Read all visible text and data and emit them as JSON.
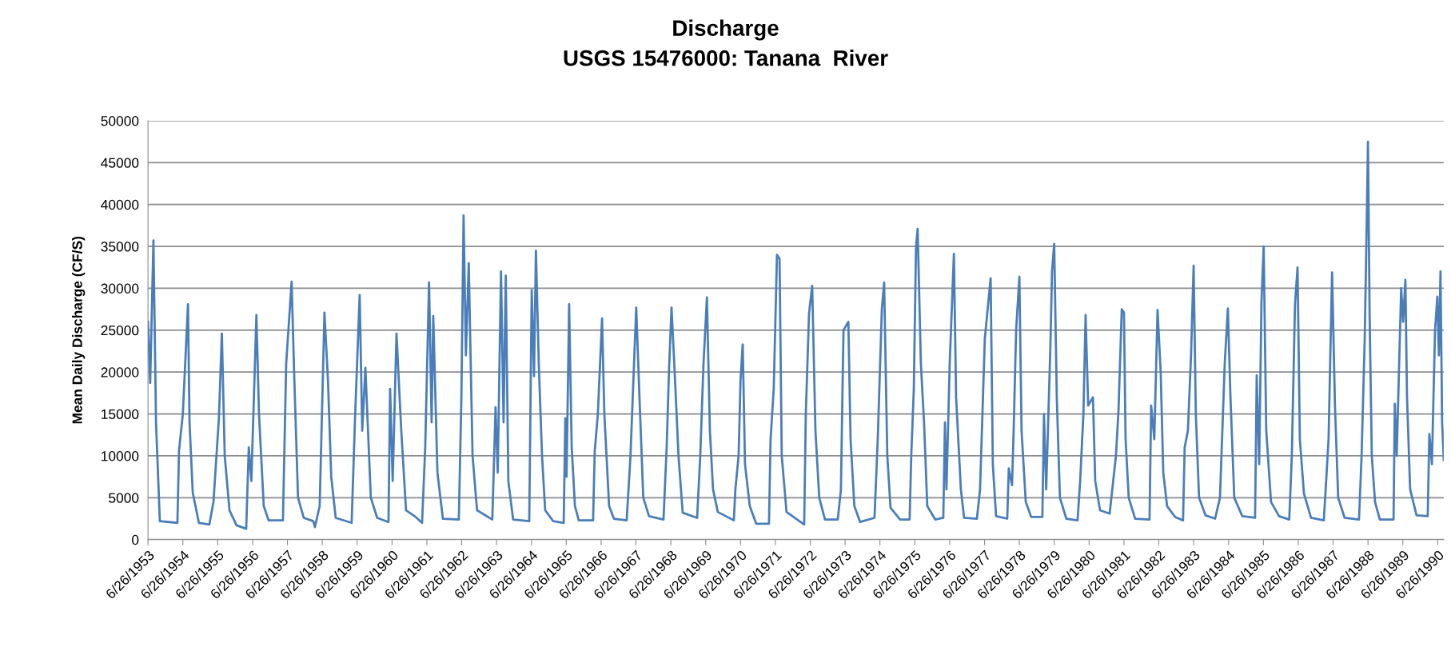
{
  "chart_data": {
    "type": "line",
    "title": "Discharge",
    "subtitle": "USGS 15476000: Tanana  River",
    "ylabel": "Mean Daily Discharge (CF/S)",
    "series": [
      {
        "color": "#4a7ebb",
        "x": [
          "1953-06-26",
          "1953-07-19",
          "1953-08-22",
          "1953-09-18",
          "1953-10-28",
          "1954-04-30",
          "1954-05-17",
          "1954-06-26",
          "1954-08-19",
          "1954-09-04",
          "1954-10-08",
          "1954-12-11",
          "1955-03-31",
          "1955-05-13",
          "1955-07-09",
          "1955-08-09",
          "1955-09-08",
          "1955-10-28",
          "1956-01-10",
          "1956-04-20",
          "1956-05-17",
          "1956-06-13",
          "1956-08-05",
          "1956-09-01",
          "1956-10-21",
          "1956-12-11",
          "1957-05-10",
          "1957-06-13",
          "1957-08-09",
          "1957-09-04",
          "1957-10-15",
          "1957-12-14",
          "1958-03-24",
          "1958-04-10",
          "1958-05-30",
          "1958-07-19",
          "1958-08-25",
          "1958-09-28",
          "1958-11-14",
          "1959-04-30",
          "1959-06-03",
          "1959-07-23",
          "1959-08-19",
          "1959-09-21",
          "1959-11-17",
          "1960-01-23",
          "1960-05-20",
          "1960-06-06",
          "1960-07-03",
          "1960-08-12",
          "1960-10-01",
          "1960-11-20",
          "1961-03-01",
          "1961-05-07",
          "1961-06-09",
          "1961-07-19",
          "1961-08-15",
          "1961-09-01",
          "1961-10-15",
          "1961-12-11",
          "1962-05-27",
          "1962-06-23",
          "1962-07-16",
          "1962-08-09",
          "1962-09-08",
          "1962-10-18",
          "1962-12-04",
          "1963-05-13",
          "1963-06-16",
          "1963-07-09",
          "1963-08-12",
          "1963-09-08",
          "1963-10-01",
          "1963-10-28",
          "1963-12-17",
          "1964-06-03",
          "1964-06-29",
          "1964-07-23",
          "1964-08-12",
          "1964-09-11",
          "1964-10-15",
          "1964-11-17",
          "1965-02-09",
          "1965-05-30",
          "1965-06-16",
          "1965-06-29",
          "1965-07-26",
          "1965-08-22",
          "1965-09-25",
          "1965-11-04",
          "1966-04-03",
          "1966-04-20",
          "1966-05-23",
          "1966-07-06",
          "1966-07-30",
          "1966-09-18",
          "1966-11-07",
          "1967-03-21",
          "1967-04-30",
          "1967-05-27",
          "1967-06-29",
          "1967-08-02",
          "1967-09-11",
          "1967-11-10",
          "1968-04-10",
          "1968-05-13",
          "1968-06-06",
          "1968-07-03",
          "1968-08-05",
          "1968-09-14",
          "1968-10-28",
          "1969-03-28",
          "1969-04-30",
          "1969-06-03",
          "1969-07-09",
          "1969-08-09",
          "1969-09-11",
          "1969-10-31",
          "1970-04-17",
          "1970-05-03",
          "1970-06-06",
          "1970-06-26",
          "1970-07-19",
          "1970-08-12",
          "1970-10-01",
          "1970-12-07",
          "1971-04-20",
          "1971-05-07",
          "1971-06-09",
          "1971-07-13",
          "1971-08-09",
          "1971-09-01",
          "1971-10-21",
          "1972-04-23",
          "1972-05-10",
          "1972-06-13",
          "1972-07-16",
          "1972-08-19",
          "1972-09-28",
          "1972-11-27",
          "1973-04-10",
          "1973-05-13",
          "1973-06-09",
          "1973-07-30",
          "1973-08-22",
          "1973-10-01",
          "1973-11-30",
          "1974-04-30",
          "1974-06-03",
          "1974-07-16",
          "1974-08-09",
          "1974-09-11",
          "1974-10-15",
          "1975-01-23",
          "1975-05-03",
          "1975-05-20",
          "1975-06-16",
          "1975-07-09",
          "1975-07-26",
          "1975-08-29",
          "1975-10-01",
          "1975-11-04",
          "1976-01-26",
          "1976-04-20",
          "1976-05-07",
          "1976-05-23",
          "1976-06-26",
          "1976-08-09",
          "1976-09-01",
          "1976-10-21",
          "1976-11-24",
          "1977-04-07",
          "1977-05-10",
          "1977-06-29",
          "1977-08-02",
          "1977-08-29",
          "1977-09-21",
          "1977-10-25",
          "1978-02-19",
          "1978-03-07",
          "1978-04-10",
          "1978-04-27",
          "1978-05-23",
          "1978-06-26",
          "1978-07-19",
          "1978-09-01",
          "1978-10-28",
          "1979-02-22",
          "1979-03-11",
          "1979-04-03",
          "1979-05-17",
          "1979-06-03",
          "1979-06-26",
          "1979-07-23",
          "1979-08-25",
          "1979-10-31",
          "1980-02-26",
          "1980-03-24",
          "1980-04-27",
          "1980-05-20",
          "1980-06-16",
          "1980-08-05",
          "1980-08-29",
          "1980-10-18",
          "1981-01-27",
          "1981-04-03",
          "1981-04-30",
          "1981-06-03",
          "1981-06-26",
          "1981-07-13",
          "1981-08-15",
          "1981-10-21",
          "1982-03-21",
          "1982-04-07",
          "1982-05-10",
          "1982-06-13",
          "1982-07-16",
          "1982-08-12",
          "1982-09-21",
          "1982-12-14",
          "1983-03-07",
          "1983-03-24",
          "1983-04-27",
          "1983-05-30",
          "1983-06-26",
          "1983-07-19",
          "1983-08-22",
          "1983-10-28",
          "1984-02-06",
          "1984-03-28",
          "1984-05-17",
          "1984-06-19",
          "1984-07-16",
          "1984-08-25",
          "1984-11-17",
          "1985-03-31",
          "1985-04-17",
          "1985-05-13",
          "1985-06-06",
          "1985-06-29",
          "1985-07-26",
          "1985-09-14",
          "1985-12-07",
          "1986-03-24",
          "1986-04-20",
          "1986-05-23",
          "1986-06-19",
          "1986-07-13",
          "1986-08-25",
          "1986-11-07",
          "1987-03-21",
          "1987-04-07",
          "1987-05-10",
          "1987-06-16",
          "1987-07-16",
          "1987-08-19",
          "1987-10-25",
          "1988-03-24",
          "1988-04-20",
          "1988-05-23",
          "1988-06-13",
          "1988-06-26",
          "1988-07-13",
          "1988-08-05",
          "1988-09-08",
          "1988-10-28",
          "1989-03-21",
          "1989-04-03",
          "1989-04-23",
          "1989-06-09",
          "1989-06-29",
          "1989-07-23",
          "1989-08-09",
          "1989-09-11",
          "1989-11-17",
          "1990-03-14",
          "1990-03-31",
          "1990-04-27",
          "1990-05-30",
          "1990-06-23",
          "1990-07-09",
          "1990-07-26",
          "1990-08-12",
          "1990-08-29"
        ],
        "values": [
          26000,
          18700,
          35700,
          14000,
          2200,
          2000,
          10600,
          15000,
          28100,
          14000,
          5600,
          2000,
          1800,
          4500,
          14500,
          24600,
          10000,
          3500,
          1700,
          1300,
          11000,
          7000,
          26800,
          15000,
          4000,
          2300,
          2300,
          21000,
          30800,
          20000,
          5000,
          2600,
          2200,
          1500,
          4000,
          27100,
          19000,
          7500,
          2600,
          2000,
          14000,
          29200,
          13000,
          20500,
          5000,
          2600,
          2100,
          18000,
          7000,
          24600,
          13000,
          3500,
          2700,
          2000,
          11000,
          30700,
          14000,
          26700,
          8000,
          2500,
          2400,
          17000,
          38700,
          22000,
          33000,
          10000,
          3500,
          2400,
          15800,
          8000,
          32000,
          14000,
          31500,
          7000,
          2400,
          2200,
          29800,
          19500,
          34500,
          21000,
          10000,
          3500,
          2200,
          2000,
          14500,
          7500,
          28100,
          11000,
          4000,
          2300,
          2300,
          10500,
          15000,
          26400,
          15000,
          4000,
          2500,
          2300,
          10000,
          18000,
          27700,
          17000,
          5000,
          2800,
          2400,
          11000,
          20000,
          27700,
          20000,
          10000,
          3200,
          2600,
          10000,
          21000,
          28900,
          13000,
          6000,
          3300,
          2300,
          6000,
          10000,
          19000,
          23300,
          9000,
          4000,
          1900,
          1900,
          12000,
          18000,
          34000,
          33500,
          10000,
          3300,
          1800,
          15000,
          27000,
          30300,
          13000,
          5000,
          2400,
          2400,
          6000,
          25000,
          26000,
          12000,
          4000,
          2100,
          2600,
          12000,
          27500,
          30700,
          10000,
          3800,
          2400,
          2400,
          10000,
          18000,
          35000,
          37100,
          21000,
          14000,
          4000,
          2400,
          2600,
          14000,
          6000,
          21000,
          34100,
          17000,
          6000,
          2600,
          2500,
          6000,
          24000,
          28000,
          31200,
          9000,
          2800,
          2500,
          8500,
          6500,
          13000,
          25000,
          31400,
          13000,
          4500,
          2700,
          2700,
          15000,
          6000,
          23000,
          32000,
          35300,
          17000,
          5000,
          2500,
          2300,
          7000,
          15000,
          26800,
          16000,
          17000,
          7000,
          3500,
          3100,
          10000,
          15500,
          27500,
          27100,
          12000,
          5000,
          2500,
          2400,
          16000,
          12000,
          27400,
          20000,
          8000,
          4000,
          2700,
          2300,
          11000,
          13000,
          22000,
          32700,
          15000,
          5000,
          2900,
          2500,
          5000,
          21000,
          27600,
          17000,
          5000,
          2800,
          2600,
          19600,
          9000,
          28400,
          35000,
          13000,
          4500,
          2800,
          2400,
          10000,
          28000,
          32500,
          12000,
          5500,
          2600,
          2300,
          5500,
          12000,
          31900,
          16000,
          5000,
          2600,
          2400,
          10000,
          24000,
          38000,
          47500,
          27000,
          10000,
          4500,
          2400,
          2400,
          16200,
          10000,
          30000,
          26000,
          31000,
          17000,
          6000,
          2900,
          2800,
          12600,
          9000,
          25000,
          29000,
          22000,
          32000,
          14000,
          9500
        ]
      }
    ],
    "xlim": [
      "1953-06-26",
      "1990-08-29"
    ],
    "xticks": [
      {
        "value": "1953-06-26",
        "label": "6/26/1953"
      },
      {
        "value": "1954-06-26",
        "label": "6/26/1954"
      },
      {
        "value": "1955-06-26",
        "label": "6/26/1955"
      },
      {
        "value": "1956-06-26",
        "label": "6/26/1956"
      },
      {
        "value": "1957-06-26",
        "label": "6/26/1957"
      },
      {
        "value": "1958-06-26",
        "label": "6/26/1958"
      },
      {
        "value": "1959-06-26",
        "label": "6/26/1959"
      },
      {
        "value": "1960-06-26",
        "label": "6/26/1960"
      },
      {
        "value": "1961-06-26",
        "label": "6/26/1961"
      },
      {
        "value": "1962-06-26",
        "label": "6/26/1962"
      },
      {
        "value": "1963-06-26",
        "label": "6/26/1963"
      },
      {
        "value": "1964-06-26",
        "label": "6/26/1964"
      },
      {
        "value": "1965-06-26",
        "label": "6/26/1965"
      },
      {
        "value": "1966-06-26",
        "label": "6/26/1966"
      },
      {
        "value": "1967-06-26",
        "label": "6/26/1967"
      },
      {
        "value": "1968-06-26",
        "label": "6/26/1968"
      },
      {
        "value": "1969-06-26",
        "label": "6/26/1969"
      },
      {
        "value": "1970-06-26",
        "label": "6/26/1970"
      },
      {
        "value": "1971-06-26",
        "label": "6/26/1971"
      },
      {
        "value": "1972-06-26",
        "label": "6/26/1972"
      },
      {
        "value": "1973-06-26",
        "label": "6/26/1973"
      },
      {
        "value": "1974-06-26",
        "label": "6/26/1974"
      },
      {
        "value": "1975-06-26",
        "label": "6/26/1975"
      },
      {
        "value": "1976-06-26",
        "label": "6/26/1976"
      },
      {
        "value": "1977-06-26",
        "label": "6/26/1977"
      },
      {
        "value": "1978-06-26",
        "label": "6/26/1978"
      },
      {
        "value": "1979-06-26",
        "label": "6/26/1979"
      },
      {
        "value": "1980-06-26",
        "label": "6/26/1980"
      },
      {
        "value": "1981-06-26",
        "label": "6/26/1981"
      },
      {
        "value": "1982-06-26",
        "label": "6/26/1982"
      },
      {
        "value": "1983-06-26",
        "label": "6/26/1983"
      },
      {
        "value": "1984-06-26",
        "label": "6/26/1984"
      },
      {
        "value": "1985-06-26",
        "label": "6/26/1985"
      },
      {
        "value": "1986-06-26",
        "label": "6/26/1986"
      },
      {
        "value": "1987-06-26",
        "label": "6/26/1987"
      },
      {
        "value": "1988-06-26",
        "label": "6/26/1988"
      },
      {
        "value": "1989-06-26",
        "label": "6/26/1989"
      },
      {
        "value": "1990-06-26",
        "label": "6/26/1990"
      }
    ],
    "ylim": [
      0,
      50000
    ],
    "yticks": [
      0,
      5000,
      10000,
      15000,
      20000,
      25000,
      30000,
      35000,
      40000,
      45000,
      50000
    ],
    "grid": "y",
    "marker": "none",
    "line_style": "solid"
  }
}
